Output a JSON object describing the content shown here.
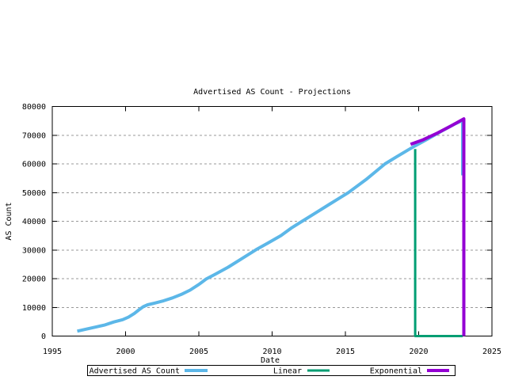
{
  "window": {
    "background": "#ffffff"
  },
  "chart_data": {
    "type": "line",
    "title": "Advertised AS Count - Projections",
    "xlabel": "Date",
    "ylabel": "AS Count",
    "xlim": [
      1995,
      2025
    ],
    "ylim": [
      0,
      80000
    ],
    "x_ticks": [
      1995,
      2000,
      2005,
      2010,
      2015,
      2020,
      2025
    ],
    "y_ticks": [
      0,
      10000,
      20000,
      30000,
      40000,
      50000,
      60000,
      70000,
      80000
    ],
    "grid": {
      "horizontal": true,
      "vertical": false,
      "style": "dashed",
      "color": "#999999"
    },
    "frame_color": "#000000",
    "legend": {
      "position": "below-plot",
      "boxed": true
    },
    "draw_order": [
      1,
      0,
      2
    ],
    "series": [
      {
        "name": "Advertised AS Count",
        "color": "#5cb7e8",
        "width": 4,
        "points": [
          [
            1996.7,
            1700
          ],
          [
            1997.3,
            2400
          ],
          [
            1998.0,
            3200
          ],
          [
            1998.6,
            3900
          ],
          [
            1999.2,
            4900
          ],
          [
            1999.8,
            5700
          ],
          [
            2000.2,
            6600
          ],
          [
            2000.6,
            7900
          ],
          [
            2000.9,
            9100
          ],
          [
            2001.2,
            10200
          ],
          [
            2001.5,
            10900
          ],
          [
            2002.0,
            11500
          ],
          [
            2002.6,
            12300
          ],
          [
            2003.2,
            13300
          ],
          [
            2003.8,
            14500
          ],
          [
            2004.4,
            16000
          ],
          [
            2005.0,
            18000
          ],
          [
            2005.5,
            19900
          ],
          [
            2006.1,
            21500
          ],
          [
            2007.0,
            24000
          ],
          [
            2008.0,
            27200
          ],
          [
            2008.9,
            30100
          ],
          [
            2009.7,
            32400
          ],
          [
            2010.6,
            35000
          ],
          [
            2011.3,
            37600
          ],
          [
            2012.05,
            40000
          ],
          [
            2013.0,
            43000
          ],
          [
            2014.0,
            46200
          ],
          [
            2015.2,
            50000
          ],
          [
            2016.4,
            54500
          ],
          [
            2017.7,
            60000
          ],
          [
            2018.5,
            62500
          ],
          [
            2019.3,
            64900
          ],
          [
            2019.76,
            66300
          ],
          [
            2020.6,
            68600
          ],
          [
            2021.6,
            71500
          ],
          [
            2022.5,
            74000
          ],
          [
            2023.0,
            75200
          ],
          [
            2023.0,
            56000
          ]
        ]
      },
      {
        "name": "Linear",
        "color": "#009e73",
        "width": 3,
        "points": [
          [
            2019.76,
            65200
          ],
          [
            2019.76,
            0
          ],
          [
            2023.0,
            0
          ]
        ]
      },
      {
        "name": "Exponential",
        "color": "#9400d3",
        "width": 4,
        "points": [
          [
            2019.45,
            66800
          ],
          [
            2020.3,
            68400
          ],
          [
            2021.3,
            70800
          ],
          [
            2022.2,
            73200
          ],
          [
            2023.08,
            75700
          ],
          [
            2023.08,
            0
          ]
        ]
      }
    ]
  }
}
